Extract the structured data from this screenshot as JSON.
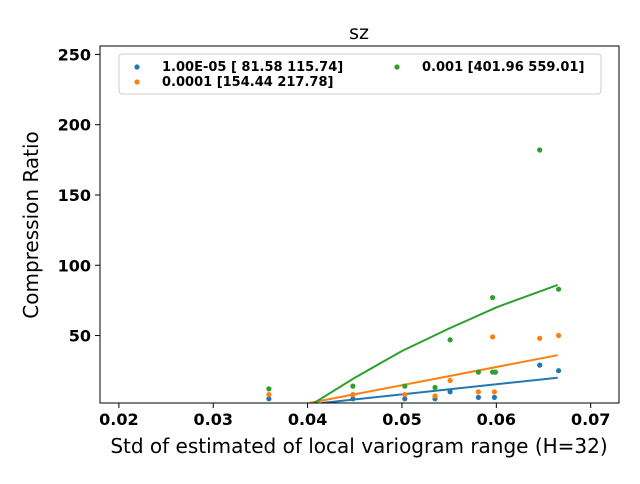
{
  "chart_data": {
    "type": "scatter",
    "title": "sz",
    "xlabel": "Std of estimated of local variogram range (H=32)",
    "ylabel": "Compression Ratio",
    "xlim": [
      0.018,
      0.073
    ],
    "ylim": [
      2,
      256
    ],
    "xticks": [
      0.02,
      0.03,
      0.04,
      0.05,
      0.06,
      0.07
    ],
    "xtick_labels": [
      "0.02",
      "0.03",
      "0.04",
      "0.05",
      "0.06",
      "0.07"
    ],
    "yticks": [
      50,
      100,
      150,
      200,
      250
    ],
    "ytick_labels": [
      "50",
      "100",
      "150",
      "200",
      "250"
    ],
    "legend_position": "top",
    "series": [
      {
        "name": "1.00E-05 [ 81.58 115.74]",
        "color": "#1f77b4",
        "points": [
          [
            0.0359,
            5
          ],
          [
            0.0448,
            5
          ],
          [
            0.0503,
            5
          ],
          [
            0.0535,
            5
          ],
          [
            0.0551,
            10
          ],
          [
            0.0581,
            6
          ],
          [
            0.0598,
            6
          ],
          [
            0.0646,
            29
          ],
          [
            0.0666,
            25
          ]
        ],
        "fit": [
          [
            0.0415,
            2
          ],
          [
            0.0665,
            20
          ]
        ]
      },
      {
        "name": "0.0001 [154.44 217.78]",
        "color": "#ff7f0e",
        "points": [
          [
            0.0359,
            8
          ],
          [
            0.0448,
            8
          ],
          [
            0.0503,
            8
          ],
          [
            0.0535,
            7
          ],
          [
            0.0551,
            18
          ],
          [
            0.0581,
            10
          ],
          [
            0.0596,
            49
          ],
          [
            0.0598,
            10
          ],
          [
            0.0646,
            48
          ],
          [
            0.0666,
            50
          ]
        ],
        "fit": [
          [
            0.0402,
            2
          ],
          [
            0.0665,
            36
          ]
        ]
      },
      {
        "name": "0.001 [401.96 559.01]",
        "color": "#2ca02c",
        "points": [
          [
            0.0359,
            12
          ],
          [
            0.0448,
            14
          ],
          [
            0.0503,
            14
          ],
          [
            0.0535,
            13
          ],
          [
            0.0551,
            47
          ],
          [
            0.0581,
            24
          ],
          [
            0.0596,
            77
          ],
          [
            0.0596,
            24
          ],
          [
            0.0599,
            24
          ],
          [
            0.0646,
            182
          ],
          [
            0.0666,
            83
          ]
        ],
        "fit": [
          [
            0.0402,
            0
          ],
          [
            0.045,
            20
          ],
          [
            0.05,
            39
          ],
          [
            0.055,
            55
          ],
          [
            0.06,
            70
          ],
          [
            0.0665,
            86
          ]
        ]
      }
    ]
  }
}
